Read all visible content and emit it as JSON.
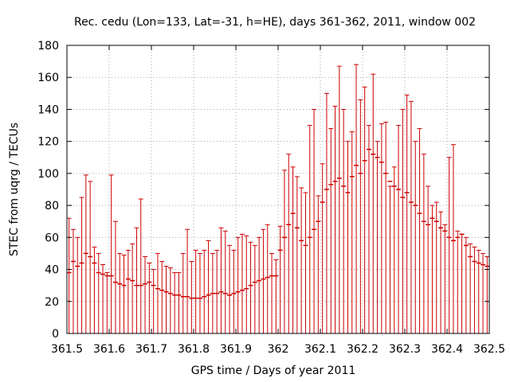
{
  "chart_data": {
    "type": "scatter",
    "title": "Rec. cedu (Lon=133, Lat=-31, h=HE), days 361-362, 2011, window 002",
    "xlabel": "GPS time / Days of year 2011",
    "ylabel": "STEC from uqrg / TECUs",
    "xlim": [
      361.5,
      362.5
    ],
    "ylim": [
      0,
      180
    ],
    "x_ticks": [
      "361.5",
      "361.6",
      "361.7",
      "361.8",
      "361.9",
      "362",
      "362.1",
      "362.2",
      "362.3",
      "362.4",
      "362.5"
    ],
    "x_tick_values": [
      361.5,
      361.6,
      361.7,
      361.8,
      361.9,
      362.0,
      362.1,
      362.2,
      362.3,
      362.4,
      362.5
    ],
    "y_ticks": [
      "0",
      "20",
      "40",
      "60",
      "80",
      "100",
      "120",
      "140",
      "160",
      "180"
    ],
    "y_tick_values": [
      0,
      20,
      40,
      60,
      80,
      100,
      120,
      140,
      160,
      180
    ],
    "grid": true,
    "color": "#cc0000",
    "series": [
      {
        "name": "STEC error bars",
        "x": [
          361.505,
          361.515,
          361.525,
          361.535,
          361.545,
          361.555,
          361.565,
          361.575,
          361.585,
          361.595,
          361.605,
          361.615,
          361.625,
          361.635,
          361.645,
          361.655,
          361.665,
          361.675,
          361.685,
          361.695,
          361.705,
          361.715,
          361.725,
          361.735,
          361.745,
          361.755,
          361.765,
          361.775,
          361.785,
          361.795,
          361.805,
          361.815,
          361.825,
          361.835,
          361.845,
          361.855,
          361.865,
          361.875,
          361.885,
          361.895,
          361.905,
          361.915,
          361.925,
          361.935,
          361.945,
          361.955,
          361.965,
          361.975,
          361.985,
          361.995,
          362.005,
          362.015,
          362.025,
          362.035,
          362.045,
          362.055,
          362.065,
          362.075,
          362.085,
          362.095,
          362.105,
          362.115,
          362.125,
          362.135,
          362.145,
          362.155,
          362.165,
          362.175,
          362.185,
          362.195,
          362.205,
          362.215,
          362.225,
          362.235,
          362.245,
          362.255,
          362.265,
          362.275,
          362.285,
          362.295,
          362.305,
          362.315,
          362.325,
          362.335,
          362.345,
          362.355,
          362.365,
          362.375,
          362.385,
          362.395,
          362.405,
          362.415,
          362.425,
          362.435,
          362.445,
          362.455,
          362.465,
          362.475,
          362.485,
          362.495
        ],
        "y": [
          38,
          45,
          42,
          44,
          50,
          48,
          44,
          38,
          37,
          36,
          36,
          32,
          31,
          30,
          34,
          33,
          30,
          30,
          31,
          32,
          30,
          28,
          27,
          26,
          25,
          24,
          24,
          23,
          23,
          22,
          22,
          22,
          23,
          24,
          25,
          25,
          26,
          25,
          24,
          25,
          26,
          27,
          28,
          30,
          32,
          33,
          34,
          35,
          36,
          36,
          52,
          60,
          68,
          75,
          66,
          58,
          55,
          60,
          65,
          70,
          82,
          90,
          93,
          95,
          97,
          92,
          88,
          98,
          105,
          100,
          108,
          115,
          112,
          110,
          107,
          100,
          95,
          92,
          90,
          85,
          88,
          82,
          80,
          75,
          70,
          68,
          72,
          70,
          66,
          64,
          60,
          58,
          60,
          62,
          55,
          48,
          45,
          44,
          43,
          42
        ],
        "y_max": [
          72,
          65,
          60,
          85,
          99,
          95,
          54,
          50,
          43,
          38,
          99,
          70,
          50,
          49,
          52,
          56,
          66,
          84,
          48,
          44,
          40,
          50,
          45,
          42,
          41,
          38,
          38,
          50,
          65,
          45,
          52,
          50,
          52,
          58,
          50,
          52,
          66,
          64,
          55,
          52,
          60,
          62,
          61,
          57,
          55,
          60,
          65,
          68,
          50,
          46,
          67,
          102,
          112,
          104,
          98,
          91,
          88,
          130,
          140,
          86,
          106,
          150,
          128,
          142,
          167,
          140,
          120,
          126,
          168,
          146,
          154,
          130,
          162,
          120,
          131,
          132,
          92,
          104,
          130,
          140,
          149,
          145,
          120,
          128,
          112,
          92,
          80,
          82,
          76,
          68,
          110,
          118,
          64,
          62,
          60,
          56,
          54,
          52,
          50,
          48
        ],
        "y_min": [
          0,
          0,
          0,
          0,
          0,
          0,
          0,
          0,
          0,
          0,
          0,
          0,
          0,
          0,
          0,
          0,
          0,
          0,
          0,
          0,
          0,
          0,
          0,
          0,
          0,
          0,
          0,
          0,
          0,
          0,
          0,
          0,
          0,
          0,
          0,
          0,
          0,
          0,
          0,
          0,
          0,
          0,
          0,
          0,
          0,
          0,
          0,
          0,
          0,
          0,
          0,
          0,
          0,
          0,
          0,
          0,
          0,
          0,
          0,
          0,
          0,
          0,
          0,
          0,
          0,
          0,
          0,
          0,
          0,
          0,
          0,
          0,
          0,
          0,
          0,
          0,
          0,
          0,
          0,
          0,
          0,
          0,
          0,
          0,
          0,
          0,
          0,
          0,
          0,
          0,
          0,
          0,
          0,
          0,
          0,
          0,
          0,
          0,
          0,
          0
        ]
      }
    ]
  }
}
